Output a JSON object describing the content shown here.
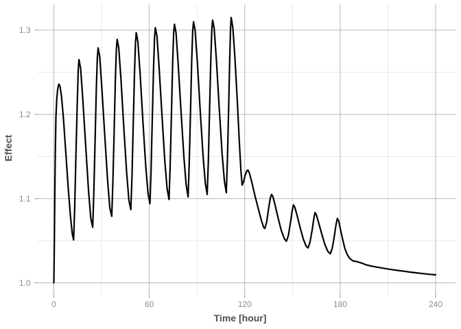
{
  "chart_data": {
    "type": "line",
    "title": "",
    "xlabel": "Time [hour]",
    "ylabel": "Effect",
    "xlim": [
      0,
      240
    ],
    "ylim": [
      1.0,
      1.33
    ],
    "grid": "on",
    "legend": "none",
    "x_ticks": [
      {
        "v": 0,
        "label": "0"
      },
      {
        "v": 60,
        "label": "60"
      },
      {
        "v": 120,
        "label": "120"
      },
      {
        "v": 180,
        "label": "180"
      },
      {
        "v": 240,
        "label": "240"
      }
    ],
    "x_minor": [
      30,
      90,
      150,
      210
    ],
    "y_ticks": [
      {
        "v": 1.0,
        "label": "1.0"
      },
      {
        "v": 1.1,
        "label": "1.1"
      },
      {
        "v": 1.2,
        "label": "1.2"
      },
      {
        "v": 1.3,
        "label": "1.3"
      }
    ],
    "y_minor": [
      1.05,
      1.15,
      1.25
    ],
    "series": [
      {
        "name": "effect",
        "color": "#000000",
        "points": [
          [
            0,
            1.0
          ],
          [
            0.3,
            1.045
          ],
          [
            0.6,
            1.105
          ],
          [
            0.9,
            1.152
          ],
          [
            1.3,
            1.196
          ],
          [
            1.8,
            1.218
          ],
          [
            2.4,
            1.23
          ],
          [
            3.1,
            1.236
          ],
          [
            3.8,
            1.234
          ],
          [
            4.8,
            1.222
          ],
          [
            6.0,
            1.196
          ],
          [
            7.5,
            1.155
          ],
          [
            9.0,
            1.113
          ],
          [
            10.5,
            1.078
          ],
          [
            11.6,
            1.058
          ],
          [
            12.4,
            1.051
          ],
          [
            13.1,
            1.09
          ],
          [
            13.9,
            1.152
          ],
          [
            14.7,
            1.213
          ],
          [
            15.3,
            1.252
          ],
          [
            15.8,
            1.265
          ],
          [
            16.8,
            1.255
          ],
          [
            18.2,
            1.218
          ],
          [
            20.0,
            1.163
          ],
          [
            21.8,
            1.11
          ],
          [
            23.2,
            1.077
          ],
          [
            24.4,
            1.066
          ],
          [
            25.1,
            1.105
          ],
          [
            25.9,
            1.168
          ],
          [
            26.7,
            1.23
          ],
          [
            27.3,
            1.266
          ],
          [
            27.8,
            1.279
          ],
          [
            28.8,
            1.269
          ],
          [
            30.2,
            1.231
          ],
          [
            32.0,
            1.175
          ],
          [
            33.8,
            1.121
          ],
          [
            35.2,
            1.089
          ],
          [
            36.4,
            1.079
          ],
          [
            37.1,
            1.118
          ],
          [
            37.9,
            1.18
          ],
          [
            38.7,
            1.242
          ],
          [
            39.3,
            1.277
          ],
          [
            39.8,
            1.289
          ],
          [
            40.8,
            1.279
          ],
          [
            42.2,
            1.241
          ],
          [
            44.0,
            1.184
          ],
          [
            45.8,
            1.13
          ],
          [
            47.2,
            1.098
          ],
          [
            48.4,
            1.087
          ],
          [
            49.1,
            1.126
          ],
          [
            49.9,
            1.188
          ],
          [
            50.7,
            1.25
          ],
          [
            51.3,
            1.285
          ],
          [
            51.8,
            1.297
          ],
          [
            52.8,
            1.287
          ],
          [
            54.2,
            1.249
          ],
          [
            56.0,
            1.192
          ],
          [
            57.8,
            1.138
          ],
          [
            59.2,
            1.106
          ],
          [
            60.4,
            1.094
          ],
          [
            61.1,
            1.133
          ],
          [
            61.9,
            1.195
          ],
          [
            62.7,
            1.257
          ],
          [
            63.3,
            1.291
          ],
          [
            63.8,
            1.303
          ],
          [
            64.8,
            1.293
          ],
          [
            66.2,
            1.255
          ],
          [
            68.0,
            1.198
          ],
          [
            69.8,
            1.144
          ],
          [
            71.2,
            1.112
          ],
          [
            72.4,
            1.099
          ],
          [
            73.1,
            1.138
          ],
          [
            73.9,
            1.2
          ],
          [
            74.7,
            1.262
          ],
          [
            75.3,
            1.296
          ],
          [
            75.8,
            1.307
          ],
          [
            76.8,
            1.297
          ],
          [
            78.2,
            1.259
          ],
          [
            80.0,
            1.202
          ],
          [
            81.8,
            1.148
          ],
          [
            83.2,
            1.116
          ],
          [
            84.4,
            1.102
          ],
          [
            85.1,
            1.141
          ],
          [
            85.9,
            1.203
          ],
          [
            86.7,
            1.265
          ],
          [
            87.3,
            1.299
          ],
          [
            87.8,
            1.31
          ],
          [
            88.8,
            1.3
          ],
          [
            90.2,
            1.262
          ],
          [
            92.0,
            1.205
          ],
          [
            93.8,
            1.151
          ],
          [
            95.2,
            1.119
          ],
          [
            96.4,
            1.105
          ],
          [
            97.1,
            1.144
          ],
          [
            97.9,
            1.206
          ],
          [
            98.7,
            1.268
          ],
          [
            99.3,
            1.301
          ],
          [
            99.8,
            1.312
          ],
          [
            100.8,
            1.302
          ],
          [
            102.2,
            1.264
          ],
          [
            104.0,
            1.207
          ],
          [
            105.8,
            1.153
          ],
          [
            107.2,
            1.121
          ],
          [
            108.4,
            1.107
          ],
          [
            109.1,
            1.146
          ],
          [
            109.9,
            1.208
          ],
          [
            110.6,
            1.27
          ],
          [
            111.1,
            1.303
          ],
          [
            111.5,
            1.315
          ],
          [
            112.5,
            1.303
          ],
          [
            113.8,
            1.268
          ],
          [
            115.3,
            1.216
          ],
          [
            116.6,
            1.167
          ],
          [
            117.6,
            1.133
          ],
          [
            118.4,
            1.116
          ],
          [
            119.3,
            1.12
          ],
          [
            120.3,
            1.128
          ],
          [
            121.3,
            1.133
          ],
          [
            122.0,
            1.134
          ],
          [
            123.0,
            1.13
          ],
          [
            124.5,
            1.119
          ],
          [
            126.5,
            1.103
          ],
          [
            128.5,
            1.088
          ],
          [
            130.5,
            1.074
          ],
          [
            131.9,
            1.066
          ],
          [
            132.6,
            1.0645
          ],
          [
            133.8,
            1.072
          ],
          [
            135.0,
            1.088
          ],
          [
            136.0,
            1.1
          ],
          [
            136.8,
            1.105
          ],
          [
            137.6,
            1.103
          ],
          [
            139.0,
            1.093
          ],
          [
            141.0,
            1.077
          ],
          [
            143.0,
            1.062
          ],
          [
            145.0,
            1.052
          ],
          [
            146.2,
            1.0495
          ],
          [
            147.4,
            1.056
          ],
          [
            148.8,
            1.072
          ],
          [
            149.8,
            1.085
          ],
          [
            150.6,
            1.0925
          ],
          [
            151.4,
            1.09
          ],
          [
            152.8,
            1.081
          ],
          [
            154.8,
            1.066
          ],
          [
            156.8,
            1.052
          ],
          [
            158.6,
            1.0435
          ],
          [
            159.8,
            1.0415
          ],
          [
            161.0,
            1.048
          ],
          [
            162.4,
            1.063
          ],
          [
            163.4,
            1.076
          ],
          [
            164.2,
            1.0835
          ],
          [
            165.0,
            1.081
          ],
          [
            166.4,
            1.072
          ],
          [
            168.4,
            1.058
          ],
          [
            170.4,
            1.0455
          ],
          [
            172.2,
            1.0375
          ],
          [
            173.8,
            1.0345
          ],
          [
            175.0,
            1.041
          ],
          [
            176.4,
            1.056
          ],
          [
            177.4,
            1.069
          ],
          [
            178.2,
            1.0765
          ],
          [
            179.0,
            1.074
          ],
          [
            180.0,
            1.065
          ],
          [
            181.5,
            1.052
          ],
          [
            183.0,
            1.0405
          ],
          [
            184.5,
            1.0335
          ],
          [
            186.0,
            1.029
          ],
          [
            188.0,
            1.0262
          ],
          [
            190.5,
            1.0252
          ],
          [
            193.5,
            1.0235
          ],
          [
            196.5,
            1.0213
          ],
          [
            200.0,
            1.0198
          ],
          [
            204.0,
            1.0184
          ],
          [
            208.0,
            1.0171
          ],
          [
            212.0,
            1.0159
          ],
          [
            216.0,
            1.0148
          ],
          [
            220.0,
            1.0138
          ],
          [
            224.0,
            1.0128
          ],
          [
            228.0,
            1.0119
          ],
          [
            232.0,
            1.011
          ],
          [
            236.0,
            1.0102
          ],
          [
            240.0,
            1.0095
          ]
        ]
      }
    ]
  },
  "colors": {
    "background": "#ffffff",
    "line": "#000000",
    "grid_major": "#b8b6ab",
    "grid_minor": "#e9e7dc",
    "tick_mark": "#8c8c8c",
    "tick_label": "#8c8c8c",
    "axis_title": "#4f4f4f"
  }
}
